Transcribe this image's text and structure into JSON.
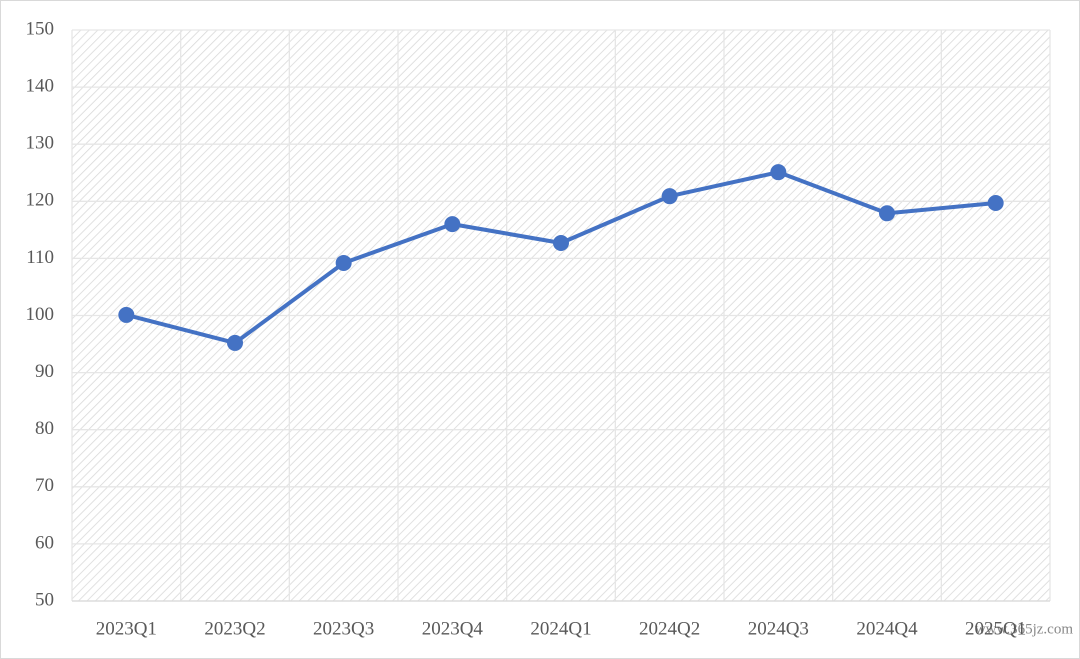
{
  "chart_data": {
    "type": "line",
    "categories": [
      "2023Q1",
      "2023Q2",
      "2023Q3",
      "2023Q4",
      "2024Q1",
      "2024Q2",
      "2024Q3",
      "2024Q4",
      "2025Q1"
    ],
    "values": [
      100.1,
      95.2,
      109.2,
      116.0,
      112.7,
      120.9,
      125.1,
      117.9,
      119.7
    ],
    "color": "#4472c4",
    "ylim": [
      50,
      150
    ],
    "yticks": [
      50,
      60,
      70,
      80,
      90,
      100,
      110,
      120,
      130,
      140,
      150
    ],
    "grid": true,
    "watermark": "www.365jz.com"
  }
}
